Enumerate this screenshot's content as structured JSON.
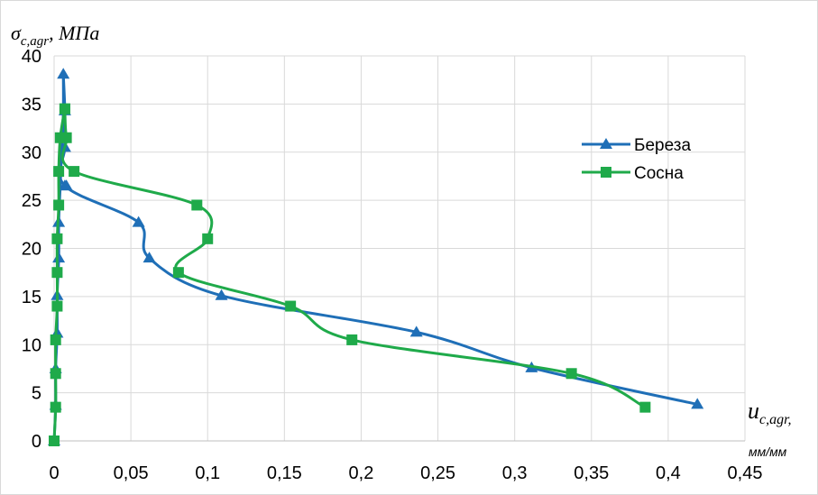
{
  "chart_data": {
    "type": "line",
    "ylabel": {
      "symbol": "σ",
      "subscript": "c,agr",
      "unit": ", МПа"
    },
    "xlabel": {
      "symbol": "u",
      "subscript": "c,agr,",
      "unit": "мм/мм"
    },
    "xlim": [
      0,
      0.45
    ],
    "ylim": [
      0,
      40
    ],
    "x_ticks": [
      "0",
      "0,05",
      "0,1",
      "0,15",
      "0,2",
      "0,25",
      "0,3",
      "0,35",
      "0,4",
      "0,45"
    ],
    "y_ticks": [
      "0",
      "5",
      "10",
      "15",
      "20",
      "25",
      "30",
      "35",
      "40"
    ],
    "grid": true,
    "legend_position": "right",
    "series": [
      {
        "name": "Береза",
        "color": "#1f6fb7",
        "marker": "triangle",
        "points": [
          [
            0,
            0
          ],
          [
            0.001,
            3.7
          ],
          [
            0.001,
            7.5
          ],
          [
            0.002,
            11.2
          ],
          [
            0.002,
            15.1
          ],
          [
            0.003,
            19
          ],
          [
            0.003,
            22.7
          ],
          [
            0.007,
            26.5
          ],
          [
            0.007,
            30.5
          ],
          [
            0.007,
            34.3
          ],
          [
            0.006,
            38.1
          ],
          [
            0.419,
            3.8
          ],
          [
            0.311,
            7.6
          ],
          [
            0.236,
            11.3
          ],
          [
            0.109,
            15.1
          ],
          [
            0.062,
            19
          ],
          [
            0.055,
            22.7
          ],
          [
            0.008,
            26.5
          ]
        ],
        "line_points": [
          [
            0.006,
            38.1
          ],
          [
            0.007,
            34.3
          ],
          [
            0.007,
            30.5
          ],
          [
            0.007,
            26.5
          ],
          [
            0.055,
            22.7
          ],
          [
            0.062,
            19
          ],
          [
            0.109,
            15.1
          ],
          [
            0.236,
            11.3
          ],
          [
            0.311,
            7.6
          ],
          [
            0.419,
            3.8
          ]
        ],
        "left_line": [
          [
            0,
            0
          ],
          [
            0.001,
            3.7
          ],
          [
            0.001,
            7.5
          ],
          [
            0.002,
            11.2
          ],
          [
            0.002,
            15.1
          ],
          [
            0.003,
            19
          ],
          [
            0.003,
            22.7
          ],
          [
            0.004,
            26.5
          ],
          [
            0.005,
            30.5
          ],
          [
            0.006,
            34.3
          ],
          [
            0.006,
            38.1
          ]
        ]
      },
      {
        "name": "Сосна",
        "color": "#1faa4a",
        "marker": "square",
        "line_points": [
          [
            0.007,
            34.5
          ],
          [
            0.008,
            31.5
          ],
          [
            0.013,
            28
          ],
          [
            0.093,
            24.5
          ],
          [
            0.1,
            21
          ],
          [
            0.081,
            17.5
          ],
          [
            0.154,
            14
          ],
          [
            0.194,
            10.5
          ],
          [
            0.337,
            7
          ],
          [
            0.385,
            3.5
          ]
        ],
        "left_line": [
          [
            0,
            0
          ],
          [
            0.001,
            3.5
          ],
          [
            0.001,
            7
          ],
          [
            0.001,
            10.5
          ],
          [
            0.002,
            14
          ],
          [
            0.002,
            17.5
          ],
          [
            0.002,
            21
          ],
          [
            0.003,
            24.5
          ],
          [
            0.003,
            28
          ],
          [
            0.004,
            31.5
          ],
          [
            0.007,
            34.5
          ]
        ]
      }
    ]
  }
}
